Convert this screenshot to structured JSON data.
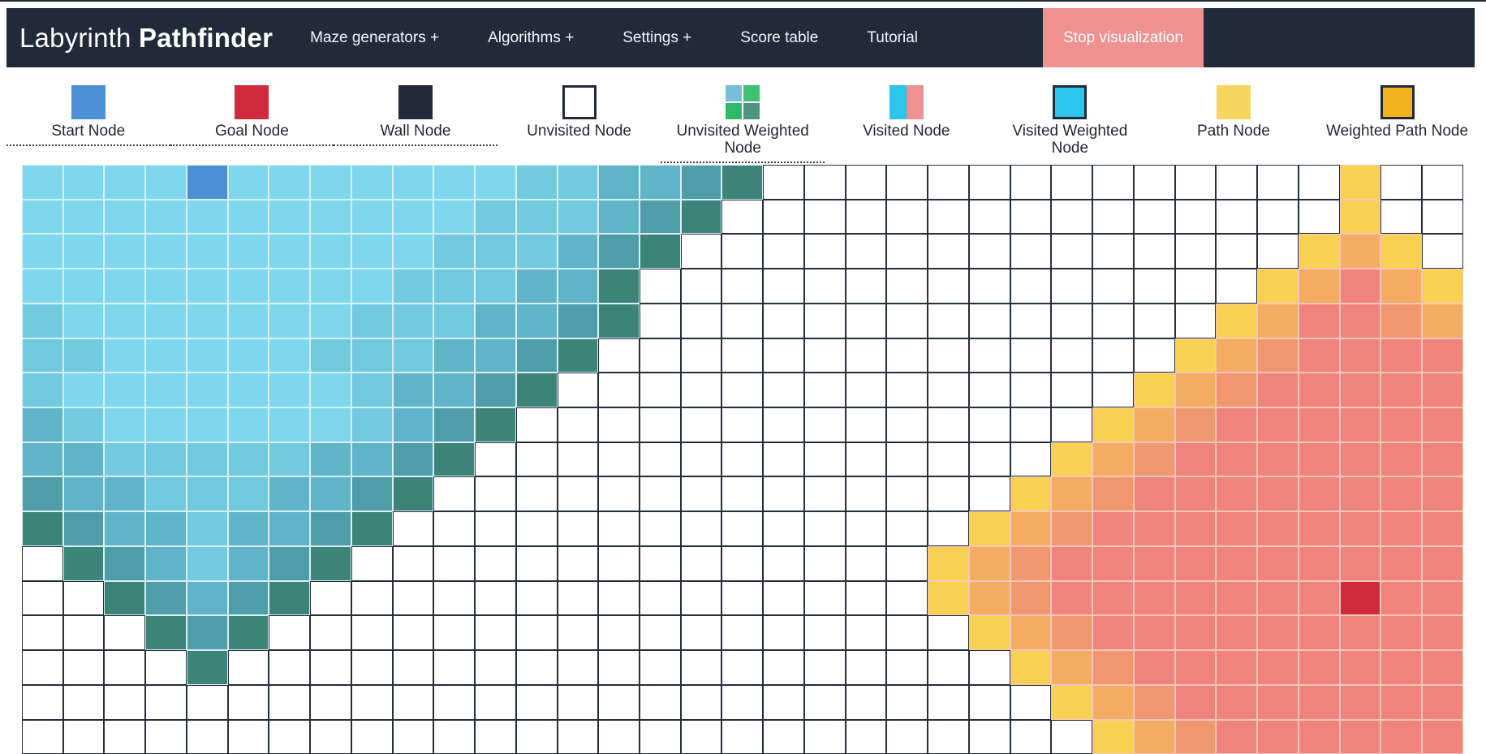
{
  "page": {
    "top_line_color": "#202a38",
    "background": "#ffffff"
  },
  "navbar": {
    "background": "#202a38",
    "title": {
      "regular": "Labyrinth",
      "bold": "Pathfinder"
    },
    "items": [
      {
        "label": "Maze generators +"
      },
      {
        "label": "Algorithms +"
      },
      {
        "label": "Settings +"
      },
      {
        "label": "Score table"
      },
      {
        "label": "Tutorial"
      }
    ],
    "stop_button": {
      "label": "Stop visualization",
      "background": "#f09191"
    }
  },
  "legend": {
    "items": [
      {
        "name": "start",
        "label": "Start Node",
        "underline": true
      },
      {
        "name": "goal",
        "label": "Goal Node",
        "underline": true
      },
      {
        "name": "wall",
        "label": "Wall Node",
        "underline": true
      },
      {
        "name": "unvisited",
        "label": "Unvisited Node",
        "underline": false
      },
      {
        "name": "unvisited-weighted",
        "label": "Unvisited Weighted Node",
        "underline": true
      },
      {
        "name": "visited",
        "label": "Visited Node",
        "underline": false
      },
      {
        "name": "visited-weighted",
        "label": "Visited Weighted Node",
        "underline": false
      },
      {
        "name": "path",
        "label": "Path Node",
        "underline": false
      },
      {
        "name": "weighted-path",
        "label": "Weighted Path Node",
        "underline": false
      }
    ],
    "swatches": {
      "start": "#4a90d3",
      "goal": "#d02a3d",
      "wall": "#202a38",
      "unvisited_fill": "#ffffff",
      "unvisited_border": "#202a38",
      "unvisited_weighted_quad": [
        "#76bfd6",
        "#3fc173",
        "#2eb966",
        "#4e937f"
      ],
      "visited_left": "#2bc4eb",
      "visited_right": "#f09191",
      "visited_weighted": "#2bc4eb",
      "path": "#f7d55e",
      "weighted_path": "#f0b31e"
    }
  },
  "grid": {
    "cols": 35,
    "rows": 17,
    "palette": {
      ".": "#ffffff",
      "1": "#7ed7ec",
      "2": "#72cadf",
      "3": "#5fb4c8",
      "4": "#4e9da8",
      "5": "#3d8478",
      "B": "#4a90d3",
      "G": "#d02a3d",
      "Y": "#f8d153",
      "O": "#f4ab62",
      "P": "#f1976f",
      "S": "#f0847c"
    },
    "border_palette": {
      "unvisited": "#232e3e",
      "cool": "#d9eff6",
      "warm": "#f6c6bd"
    },
    "cells": [
      "1111B1111111223345..............Y..",
      "11111111111222345...............Y..",
      "1111111111222345...............YOY.",
      "111111111222335...............YOSOY",
      "211111112223345..............YOSSPO",
      "22111112223345..............YOPSSSS",
      "2111111123345..............YOPSSSSS",
      "321111112345..............YOPSSSSSS",
      "33222223345..............YOPSSSSSSS",
      "4332223345..............YOPSSSSSSSS",
      "543323345..............YOPSSSSSSSSS",
      ".5432345..............YOPSSSSSSSSSS",
      "..54345...............YOPSSSSSSSGSS",
      "...545.................YOPSSSSSSSSS",
      "....5...................YOPSSSSSSSS",
      ".........................YOPSSSSSSS",
      "..........................YOPSSSSSS"
    ]
  }
}
